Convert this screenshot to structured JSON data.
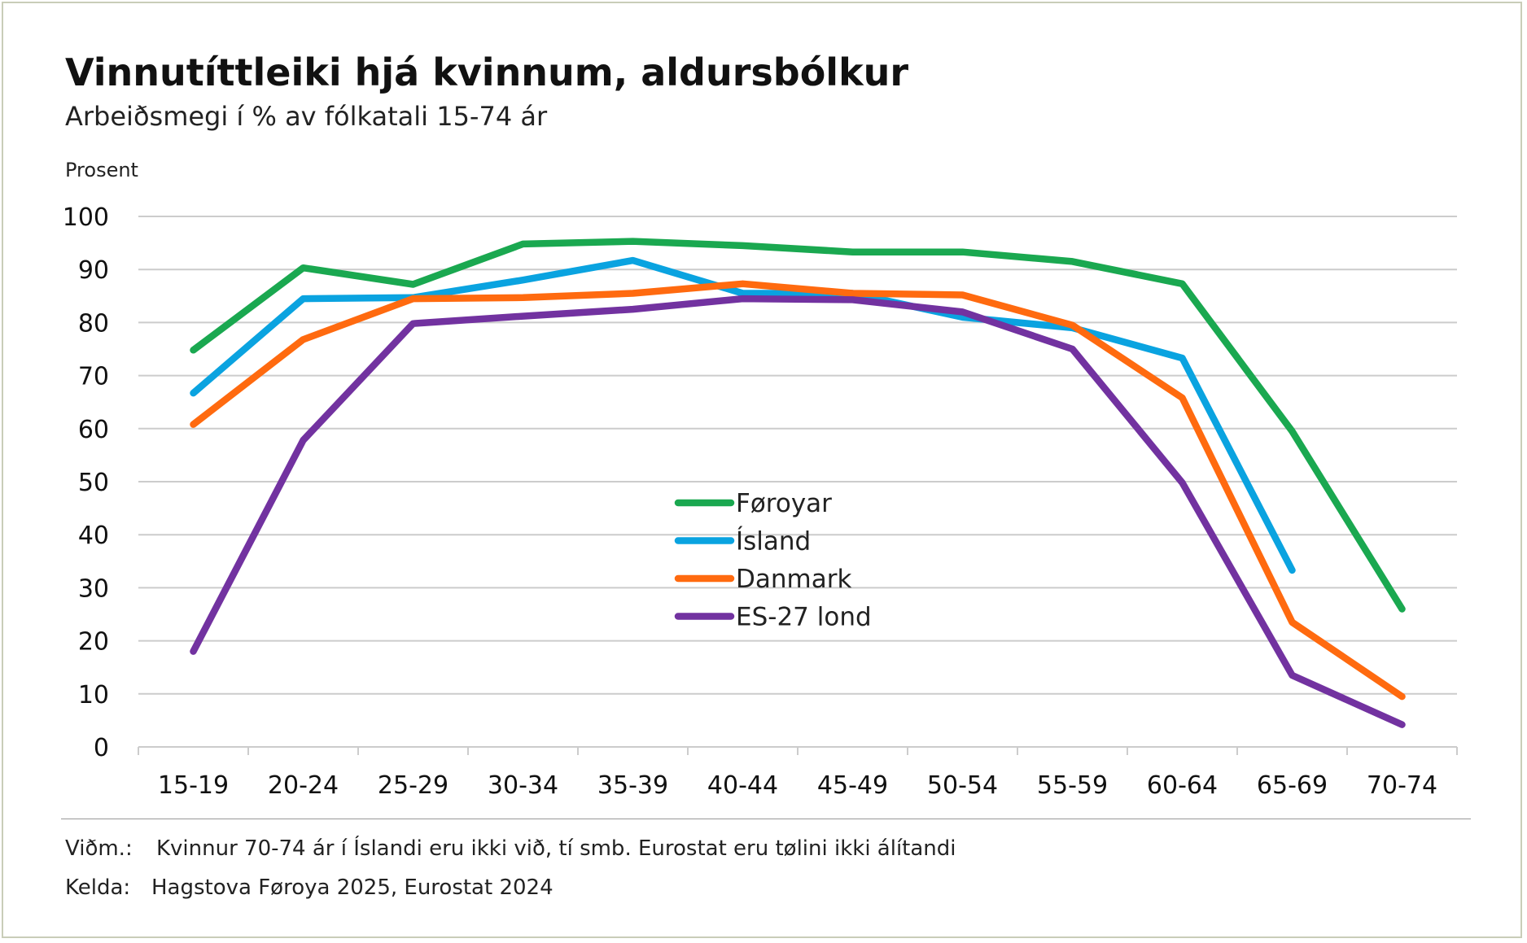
{
  "title": "Vinnutíttleiki hjá kvinnum, aldursbólkur",
  "subtitle": "Arbeiðsmegi í % av fólkatali 15-74 ár",
  "note": {
    "label": "Viðm.:",
    "text": "Kvinnur 70-74 ár í Íslandi eru ikki við, tí smb. Eurostat eru tølini ikki álítandi"
  },
  "source": {
    "label": "Kelda:",
    "text": "Hagstova Føroya 2025, Eurostat 2024"
  },
  "chart_data": {
    "type": "line",
    "ylabel": "Prosent",
    "ylim": [
      0,
      100
    ],
    "yticks": [
      0,
      10,
      20,
      30,
      40,
      50,
      60,
      70,
      80,
      90,
      100
    ],
    "grid": true,
    "legend_position": "center",
    "categories": [
      "15-19",
      "20-24",
      "25-29",
      "30-34",
      "35-39",
      "40-44",
      "45-49",
      "50-54",
      "55-59",
      "60-64",
      "65-69",
      "70-74"
    ],
    "series": [
      {
        "name": "Føroyar",
        "color": "#1aa850",
        "values": [
          74.8,
          90.3,
          87.2,
          94.8,
          95.3,
          94.5,
          93.3,
          93.3,
          91.5,
          87.3,
          59.5,
          26.0
        ]
      },
      {
        "name": "Ísland",
        "color": "#0aa3e0",
        "values": [
          66.7,
          84.5,
          84.7,
          88.0,
          91.7,
          85.5,
          85.5,
          81.0,
          79.0,
          73.3,
          33.3,
          null
        ]
      },
      {
        "name": "Danmark",
        "color": "#ff6a0f",
        "values": [
          60.8,
          76.8,
          84.5,
          84.7,
          85.5,
          87.3,
          85.5,
          85.2,
          79.5,
          65.8,
          23.5,
          9.5
        ]
      },
      {
        "name": "ES-27 lond",
        "color": "#7232a0",
        "values": [
          18.0,
          57.8,
          79.8,
          81.2,
          82.5,
          84.5,
          84.3,
          82.0,
          75.0,
          49.8,
          13.5,
          4.2
        ]
      }
    ]
  }
}
